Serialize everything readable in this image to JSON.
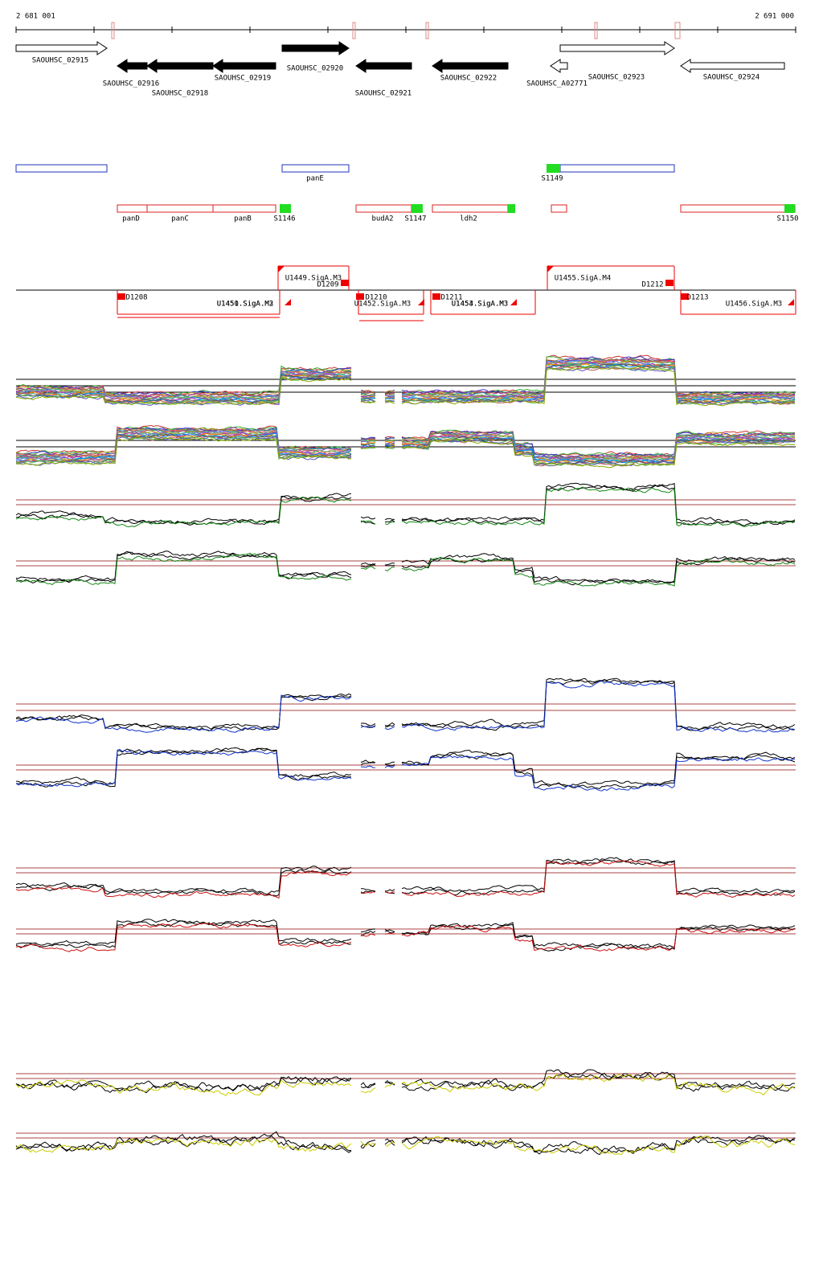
{
  "ruler": {
    "start": "2 681 001",
    "end": "2 691 000"
  },
  "genes": [
    "SAOUHSC_02915",
    "SAOUHSC_02916",
    "SAOUHSC_02918",
    "SAOUHSC_02919",
    "SAOUHSC_02920",
    "SAOUHSC_02921",
    "SAOUHSC_02922",
    "SAOUHSC_A02771",
    "SAOUHSC_02923",
    "SAOUHSC_02924"
  ],
  "operons": [
    "panE",
    "S1149"
  ],
  "features": [
    "panD",
    "panC",
    "panB",
    "S1146",
    "budA2",
    "S1147",
    "ldh2",
    "S1150"
  ],
  "regulatory": [
    "U1449.SigA.M3",
    "D1209",
    "D1208",
    "U1450.SigA.M3",
    "U1451.SigA.M2",
    "U1452.SigA.M3",
    "D1210",
    "D1211",
    "U1453.SigA.M3",
    "U1454.SigA.M3",
    "U1455.SigA.M4",
    "D1212",
    "D1213",
    "U1456.SigA.M3"
  ]
}
